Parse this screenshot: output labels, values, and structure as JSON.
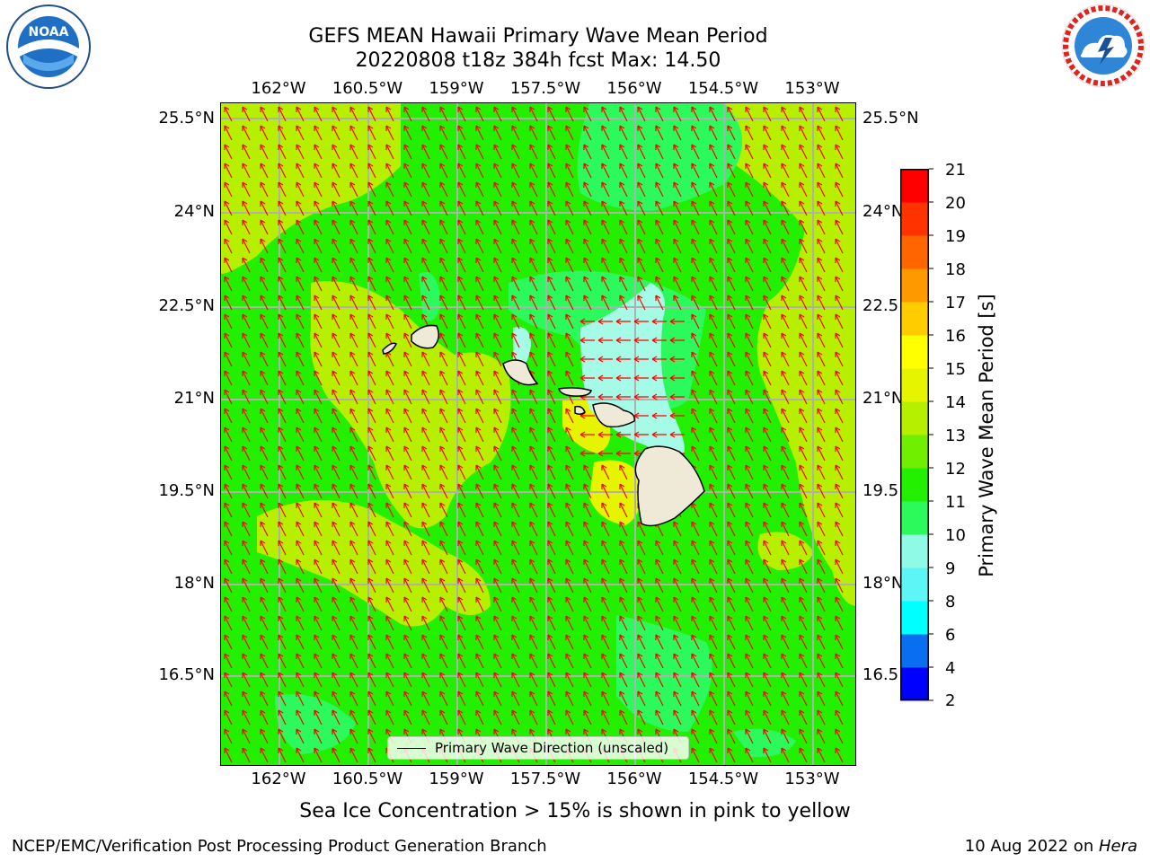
{
  "title_line1": "GEFS MEAN Hawaii Primary Wave Mean Period",
  "title_line2": "20220808 t18z 384h fcst   Max: 14.50",
  "lon_labels": [
    "162°W",
    "160.5°W",
    "159°W",
    "157.5°W",
    "156°W",
    "154.5°W",
    "153°W"
  ],
  "lat_labels_left": [
    "25.5°N",
    "24°N",
    "22.5°N",
    "21°N",
    "19.5°N",
    "18°N",
    "16.5°N"
  ],
  "lat_labels_right": [
    "25.5°N",
    "24°N",
    "22.5",
    "21°N",
    "19.5",
    "18°N",
    "16.5"
  ],
  "colorbar": {
    "label": "Primary Wave Mean Period [s]",
    "ticks": [
      "21",
      "20",
      "19",
      "18",
      "17",
      "16",
      "15",
      "14",
      "13",
      "12",
      "11",
      "10",
      "9",
      "8",
      "6",
      "4",
      "2"
    ],
    "colors_bottom_to_top": [
      "#0000ff",
      "#0a6ef0",
      "#00ffff",
      "#5cf6f6",
      "#8ffbe6",
      "#2cf95c",
      "#22f000",
      "#70f000",
      "#b6f000",
      "#e6f400",
      "#ffff00",
      "#ffcc00",
      "#ff9900",
      "#ff6600",
      "#ff3300",
      "#ff0000"
    ]
  },
  "legend": {
    "label": "Primary Wave Direction (unscaled)"
  },
  "map_colors": {
    "base": "#22f000",
    "light_green": "#2cf95c",
    "lime": "#b6f000",
    "yellow": "#e6f400",
    "cyan_pale": "#a6fbe6",
    "land": "#efe9d8",
    "arrow": "#ff0000",
    "grid": "#b0b0b0"
  },
  "subtitle": "Sea Ice Concentration > 15% is shown in pink to yellow",
  "footer_left": "NCEP/EMC/Verification Post Processing Product Generation Branch",
  "footer_right_prefix": "10 Aug 2022 on ",
  "footer_right_host": "Hera",
  "logos": {
    "noaa_text": "NOAA",
    "noaa_ring": "NATIONAL OCEANIC AND ATMOSPHERIC ADMINISTRATION · U.S. DEPARTMENT OF COMMERCE",
    "nws_ring": "NATIONAL WEATHER SERVICE"
  }
}
